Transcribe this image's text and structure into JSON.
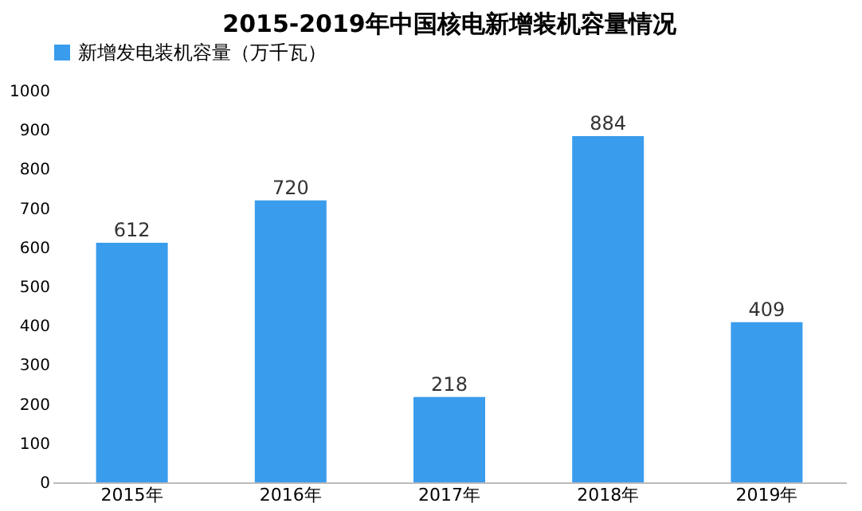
{
  "chart_data": {
    "type": "bar",
    "title": "2015-2019年中国核电新增装机容量情况",
    "categories": [
      "2015年",
      "2016年",
      "2017年",
      "2018年",
      "2019年"
    ],
    "series": [
      {
        "name": "新增发电装机容量（万千瓦）",
        "color": "#3a9cec",
        "values": [
          612,
          720,
          218,
          884,
          409
        ]
      }
    ],
    "ylim": [
      0,
      1000
    ],
    "yticks": [
      0,
      100,
      200,
      300,
      400,
      500,
      600,
      700,
      800,
      900,
      1000
    ],
    "data_labels": true,
    "legend": "top",
    "grid": false
  }
}
